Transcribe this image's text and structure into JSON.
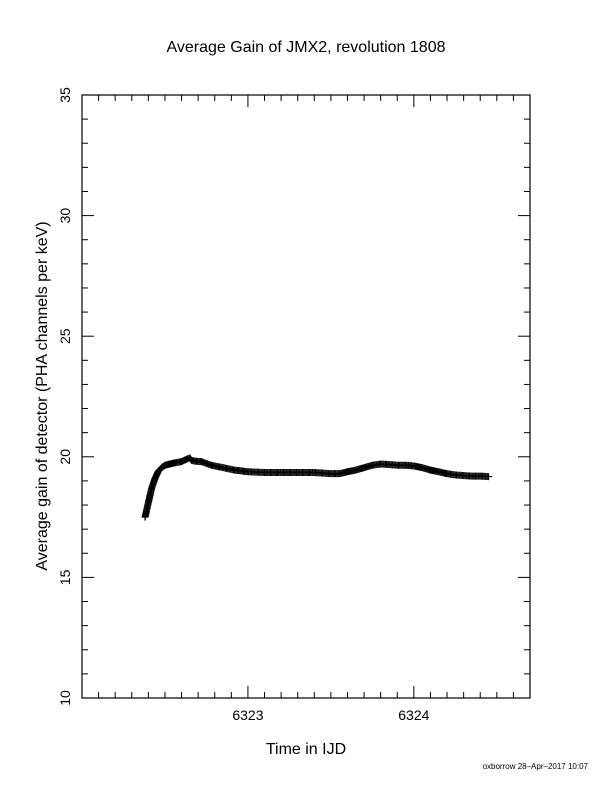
{
  "chart_data": {
    "type": "scatter",
    "title": "Average Gain of JMX2, revolution 1808",
    "xlabel": "Time in IJD",
    "ylabel": "Average gain of detector (PHA channels per keV)",
    "xlim": [
      6322.0,
      6324.7
    ],
    "ylim": [
      10,
      35
    ],
    "x_ticks": [
      6323,
      6324
    ],
    "y_ticks": [
      10,
      15,
      20,
      25,
      30,
      35
    ],
    "x_minor_step": 0.1,
    "y_minor_step": 1,
    "grid": false,
    "marker": "plus",
    "color": "#000000",
    "series": [
      {
        "x": [
          6322.38,
          6322.39,
          6322.4,
          6322.41,
          6322.42,
          6322.43,
          6322.44,
          6322.45,
          6322.46,
          6322.48,
          6322.5,
          6322.53,
          6322.56,
          6322.6,
          6322.63,
          6322.65,
          6322.66,
          6322.68,
          6322.72,
          6322.78,
          6322.85,
          6322.92,
          6323.0,
          6323.1,
          6323.2,
          6323.3,
          6323.4,
          6323.5,
          6323.55,
          6323.6,
          6323.65,
          6323.7,
          6323.75,
          6323.8,
          6323.85,
          6323.9,
          6323.95,
          6324.0,
          6324.05,
          6324.1,
          6324.15,
          6324.2,
          6324.25,
          6324.3,
          6324.35,
          6324.4,
          6324.45
        ],
        "y": [
          17.5,
          17.8,
          18.1,
          18.4,
          18.7,
          18.9,
          19.1,
          19.25,
          19.4,
          19.55,
          19.65,
          19.7,
          19.75,
          19.8,
          19.9,
          19.95,
          19.85,
          19.82,
          19.8,
          19.65,
          19.55,
          19.45,
          19.38,
          19.35,
          19.35,
          19.35,
          19.35,
          19.3,
          19.3,
          19.38,
          19.45,
          19.55,
          19.65,
          19.7,
          19.68,
          19.65,
          19.65,
          19.62,
          19.55,
          19.45,
          19.38,
          19.3,
          19.25,
          19.22,
          19.2,
          19.2,
          19.18
        ]
      }
    ]
  },
  "footer_stamp": "oxborrow 28–Apr–2017 10:07"
}
